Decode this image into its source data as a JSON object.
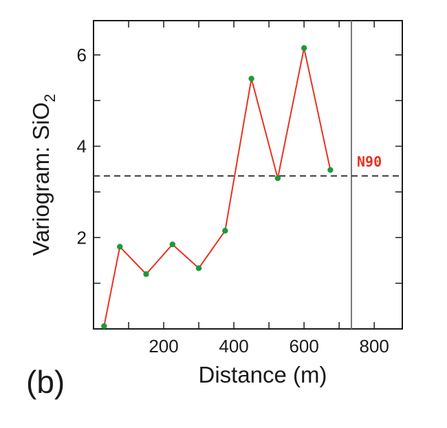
{
  "chart_data": {
    "type": "line",
    "xlabel": "Distance (m)",
    "ylabel_main": "Variogram: SiO",
    "ylabel_subscript": "2",
    "xlim": [
      0,
      880
    ],
    "ylim": [
      0,
      6.75
    ],
    "x_ticks": [
      200,
      400,
      600,
      800
    ],
    "x_tick_labels": [
      "200",
      "400",
      "600",
      "800"
    ],
    "x_minor_ticks": [
      100,
      300,
      500,
      700
    ],
    "y_ticks": [
      2,
      4,
      6
    ],
    "y_tick_labels": [
      "2",
      "4",
      "6"
    ],
    "y_minor_ticks": [
      1,
      3,
      5
    ],
    "series": [
      {
        "name": "N90",
        "line_color": "#e8321e",
        "marker_color": "#1a9a3c",
        "x": [
          30,
          75,
          150,
          225,
          300,
          375,
          450,
          525,
          600,
          675
        ],
        "y": [
          0.06,
          1.8,
          1.2,
          1.85,
          1.33,
          2.15,
          5.48,
          3.3,
          6.15,
          3.48
        ]
      }
    ],
    "sill": {
      "y": 3.35,
      "style": "dashed",
      "color": "#333333"
    },
    "range_line": {
      "x": 735,
      "color": "#777777"
    },
    "panel_label": "(b)"
  }
}
